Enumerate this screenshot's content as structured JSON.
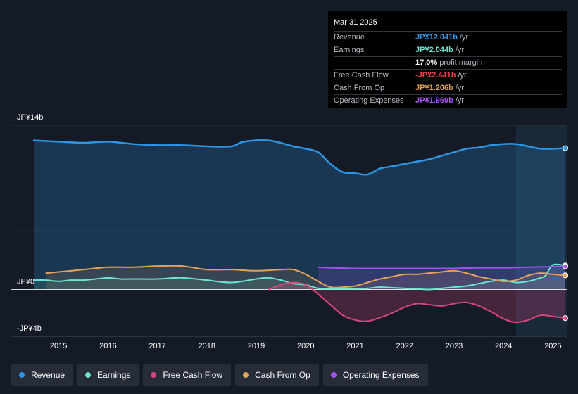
{
  "colors": {
    "revenue": "#2d95e6",
    "earnings": "#6ee6d2",
    "fcf": "#d6457b",
    "cfo": "#e5a35a",
    "opex": "#a352f2"
  },
  "tooltip": {
    "date": "Mar 31 2025",
    "rows": [
      {
        "label": "Revenue",
        "value": "JP¥12.041b",
        "suffix": "/yr",
        "color": "#2d95e6"
      },
      {
        "label": "Earnings",
        "value": "JP¥2.044b",
        "suffix": "/yr",
        "color": "#6ee6d2"
      },
      {
        "label": "",
        "value": "17.0%",
        "suffix": "profit margin",
        "color": "#ffffff"
      },
      {
        "label": "Free Cash Flow",
        "value": "-JP¥2.441b",
        "suffix": "/yr",
        "color": "#e8424a"
      },
      {
        "label": "Cash From Op",
        "value": "JP¥1.206b",
        "suffix": "/yr",
        "color": "#e5a35a"
      },
      {
        "label": "Operating Expenses",
        "value": "JP¥1.969b",
        "suffix": "/yr",
        "color": "#a352f2"
      }
    ]
  },
  "legend": [
    {
      "label": "Revenue",
      "color": "#2d95e6"
    },
    {
      "label": "Earnings",
      "color": "#6ee6d2"
    },
    {
      "label": "Free Cash Flow",
      "color": "#d6457b"
    },
    {
      "label": "Cash From Op",
      "color": "#e5a35a"
    },
    {
      "label": "Operating Expenses",
      "color": "#a352f2"
    }
  ],
  "chart_data": {
    "type": "area",
    "title": "",
    "unit": "JP¥ billions",
    "ylim": [
      -4,
      14
    ],
    "y_tick_labels": [
      {
        "value": 14,
        "label": "JP¥14b"
      },
      {
        "value": 0,
        "label": "JP¥0"
      },
      {
        "value": -4,
        "label": "-JP¥4b"
      }
    ],
    "xlim": [
      2014.5,
      2025.25
    ],
    "x_ticks": [
      2015,
      2016,
      2017,
      2018,
      2019,
      2020,
      2021,
      2022,
      2023,
      2024,
      2025
    ],
    "highlight_from": 2024.25,
    "series": [
      {
        "name": "Revenue",
        "key": "revenue",
        "x": [
          2014.5,
          2015.0,
          2015.5,
          2016.0,
          2016.5,
          2017.0,
          2017.5,
          2018.0,
          2018.5,
          2018.75,
          2019.25,
          2019.75,
          2020.0,
          2020.25,
          2020.5,
          2020.75,
          2021.0,
          2021.25,
          2021.5,
          2021.75,
          2022.0,
          2022.25,
          2022.5,
          2022.75,
          2023.0,
          2023.25,
          2023.5,
          2023.75,
          2024.0,
          2024.25,
          2024.5,
          2024.75,
          2025.0,
          2025.25
        ],
        "values": [
          12.7,
          12.6,
          12.5,
          12.6,
          12.4,
          12.3,
          12.3,
          12.2,
          12.2,
          12.6,
          12.7,
          12.2,
          12.0,
          11.7,
          10.7,
          10.0,
          9.9,
          9.8,
          10.3,
          10.5,
          10.7,
          10.9,
          11.1,
          11.4,
          11.7,
          12.0,
          12.1,
          12.3,
          12.4,
          12.4,
          12.2,
          12.0,
          12.0,
          12.041
        ]
      },
      {
        "name": "Earnings",
        "key": "earnings",
        "x": [
          2014.5,
          2014.75,
          2015.0,
          2015.25,
          2015.5,
          2015.75,
          2016.0,
          2016.25,
          2016.5,
          2017.0,
          2017.5,
          2018.0,
          2018.5,
          2019.0,
          2019.25,
          2019.5,
          2019.75,
          2020.0,
          2020.25,
          2020.5,
          2020.75,
          2021.0,
          2021.25,
          2021.5,
          2021.75,
          2022.0,
          2022.25,
          2022.5,
          2022.75,
          2023.0,
          2023.25,
          2023.5,
          2023.75,
          2024.0,
          2024.25,
          2024.5,
          2024.75,
          2024.85,
          2025.0,
          2025.25
        ],
        "values": [
          0.8,
          0.8,
          0.7,
          0.8,
          0.8,
          0.9,
          1.0,
          0.9,
          0.9,
          0.9,
          1.0,
          0.8,
          0.6,
          0.9,
          1.0,
          0.8,
          0.5,
          0.4,
          0.1,
          0.05,
          0.05,
          0.05,
          0.1,
          0.2,
          0.15,
          0.1,
          0.05,
          0.0,
          0.1,
          0.2,
          0.3,
          0.5,
          0.7,
          0.8,
          0.6,
          0.7,
          1.0,
          1.2,
          2.1,
          2.044
        ]
      },
      {
        "name": "Free Cash Flow",
        "key": "fcf",
        "x": [
          2019.25,
          2019.5,
          2019.75,
          2020.0,
          2020.25,
          2020.5,
          2020.75,
          2021.0,
          2021.25,
          2021.5,
          2021.75,
          2022.0,
          2022.25,
          2022.5,
          2022.75,
          2023.0,
          2023.25,
          2023.5,
          2023.75,
          2024.0,
          2024.25,
          2024.5,
          2024.75,
          2025.0,
          2025.25
        ],
        "values": [
          0.0,
          0.4,
          0.6,
          0.4,
          -0.4,
          -1.3,
          -2.2,
          -2.6,
          -2.7,
          -2.4,
          -2.0,
          -1.5,
          -1.2,
          -1.3,
          -1.4,
          -1.2,
          -1.1,
          -1.4,
          -1.9,
          -2.5,
          -2.8,
          -2.6,
          -2.2,
          -2.3,
          -2.441
        ]
      },
      {
        "name": "Cash From Op",
        "key": "cfo",
        "x": [
          2014.75,
          2015.0,
          2015.5,
          2016.0,
          2016.5,
          2017.0,
          2017.5,
          2018.0,
          2018.5,
          2019.0,
          2019.5,
          2019.75,
          2020.0,
          2020.25,
          2020.5,
          2020.75,
          2021.0,
          2021.25,
          2021.5,
          2021.75,
          2022.0,
          2022.25,
          2022.5,
          2022.75,
          2023.0,
          2023.25,
          2023.5,
          2023.75,
          2024.0,
          2024.25,
          2024.5,
          2024.75,
          2025.0,
          2025.25
        ],
        "values": [
          1.4,
          1.5,
          1.7,
          1.9,
          1.9,
          2.0,
          2.0,
          1.7,
          1.7,
          1.6,
          1.7,
          1.7,
          1.3,
          0.7,
          0.2,
          0.2,
          0.3,
          0.6,
          0.9,
          1.1,
          1.3,
          1.3,
          1.4,
          1.5,
          1.6,
          1.4,
          1.1,
          0.9,
          0.7,
          0.8,
          1.2,
          1.4,
          1.3,
          1.206
        ]
      },
      {
        "name": "Operating Expenses",
        "key": "opex",
        "x": [
          2020.25,
          2020.5,
          2021.0,
          2021.5,
          2022.0,
          2022.5,
          2023.0,
          2023.5,
          2024.0,
          2024.5,
          2025.0,
          2025.25
        ],
        "values": [
          1.9,
          1.85,
          1.8,
          1.8,
          1.8,
          1.8,
          1.8,
          1.85,
          1.85,
          1.9,
          1.95,
          1.969
        ]
      }
    ]
  }
}
